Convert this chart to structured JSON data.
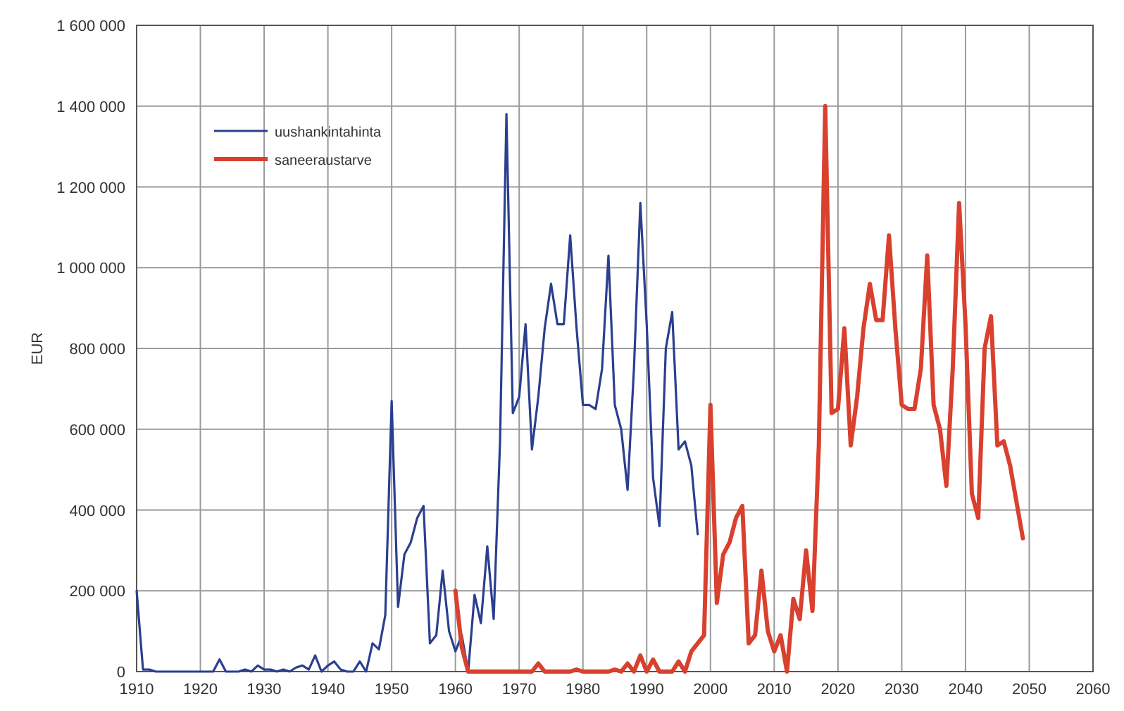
{
  "chart_data": {
    "type": "line",
    "ylabel": "EUR",
    "xlim": [
      1910,
      2060
    ],
    "xticks": [
      1910,
      1920,
      1930,
      1940,
      1950,
      1960,
      1970,
      1980,
      1990,
      2000,
      2010,
      2020,
      2030,
      2040,
      2050,
      2060
    ],
    "ylim": [
      0,
      1600000
    ],
    "yticks": [
      0,
      {
        "value": 200000,
        "label": "200 000"
      },
      {
        "value": 400000,
        "label": "400 000"
      },
      {
        "value": 600000,
        "label": "600 000"
      },
      {
        "value": 800000,
        "label": "800 000"
      },
      {
        "value": 1000000,
        "label": "1 000 000"
      },
      {
        "value": 1200000,
        "label": "1 200 000"
      },
      {
        "value": 1400000,
        "label": "1 400 000"
      },
      {
        "value": 1600000,
        "label": "1 600 000"
      }
    ],
    "grid": true,
    "legend": "top left",
    "marker": "none",
    "line_style": "solid",
    "series": [
      {
        "name": "uushankintahinta",
        "color": "#2b3f8f",
        "x": [
          1910,
          1911,
          1912,
          1913,
          1914,
          1915,
          1916,
          1917,
          1918,
          1919,
          1920,
          1921,
          1922,
          1923,
          1924,
          1925,
          1926,
          1927,
          1928,
          1929,
          1930,
          1931,
          1932,
          1933,
          1934,
          1935,
          1936,
          1937,
          1938,
          1939,
          1940,
          1941,
          1942,
          1943,
          1944,
          1945,
          1946,
          1947,
          1948,
          1949,
          1950,
          1951,
          1952,
          1953,
          1954,
          1955,
          1956,
          1957,
          1958,
          1959,
          1960,
          1961,
          1962,
          1963,
          1964,
          1965,
          1966,
          1967,
          1968,
          1969,
          1970,
          1971,
          1972,
          1973,
          1974,
          1975,
          1976,
          1977,
          1978,
          1979,
          1980,
          1981,
          1982,
          1983,
          1984,
          1985,
          1986,
          1987,
          1988,
          1989,
          1990,
          1991,
          1992,
          1993,
          1994,
          1995,
          1996,
          1997,
          1998
        ],
        "values": [
          200000,
          5000,
          5000,
          0,
          0,
          0,
          0,
          0,
          0,
          0,
          0,
          0,
          0,
          30000,
          0,
          0,
          0,
          5000,
          0,
          15000,
          5000,
          5000,
          0,
          5000,
          0,
          10000,
          15000,
          5000,
          40000,
          0,
          15000,
          25000,
          5000,
          0,
          0,
          25000,
          0,
          70000,
          55000,
          140000,
          670000,
          160000,
          290000,
          320000,
          380000,
          410000,
          70000,
          90000,
          250000,
          100000,
          50000,
          90000,
          0,
          190000,
          120000,
          310000,
          130000,
          570000,
          1380000,
          640000,
          680000,
          860000,
          550000,
          680000,
          850000,
          960000,
          860000,
          860000,
          1080000,
          850000,
          660000,
          660000,
          650000,
          750000,
          1030000,
          660000,
          600000,
          450000,
          750000,
          1160000,
          860000,
          480000,
          360000,
          800000,
          890000,
          550000,
          570000,
          510000,
          340000
        ]
      },
      {
        "name": "saneeraustarve",
        "color": "#d9402e",
        "x": [
          1960,
          1961,
          1962,
          1963,
          1964,
          1965,
          1966,
          1967,
          1968,
          1969,
          1970,
          1971,
          1972,
          1973,
          1974,
          1975,
          1976,
          1977,
          1978,
          1979,
          1980,
          1981,
          1982,
          1983,
          1984,
          1985,
          1986,
          1987,
          1988,
          1989,
          1990,
          1991,
          1992,
          1993,
          1994,
          1995,
          1996,
          1997,
          1998,
          1999,
          2000,
          2001,
          2002,
          2003,
          2004,
          2005,
          2006,
          2007,
          2008,
          2009,
          2010,
          2011,
          2012,
          2013,
          2014,
          2015,
          2016,
          2017,
          2018,
          2019,
          2020,
          2021,
          2022,
          2023,
          2024,
          2025,
          2026,
          2027,
          2028,
          2029,
          2030,
          2031,
          2032,
          2033,
          2034,
          2035,
          2036,
          2037,
          2038,
          2039,
          2040,
          2041,
          2042,
          2043,
          2044,
          2045,
          2046,
          2047,
          2048,
          2049
        ],
        "values": [
          200000,
          60000,
          0,
          0,
          0,
          0,
          0,
          0,
          0,
          0,
          0,
          0,
          0,
          20000,
          0,
          0,
          0,
          0,
          0,
          5000,
          0,
          0,
          0,
          0,
          0,
          5000,
          0,
          20000,
          0,
          40000,
          0,
          30000,
          0,
          0,
          0,
          25000,
          0,
          50000,
          70000,
          90000,
          660000,
          170000,
          290000,
          320000,
          380000,
          410000,
          70000,
          90000,
          250000,
          100000,
          50000,
          90000,
          0,
          180000,
          130000,
          300000,
          150000,
          560000,
          1400000,
          640000,
          650000,
          850000,
          560000,
          680000,
          850000,
          960000,
          870000,
          870000,
          1080000,
          850000,
          660000,
          650000,
          650000,
          750000,
          1030000,
          660000,
          600000,
          460000,
          750000,
          1160000,
          860000,
          440000,
          380000,
          800000,
          880000,
          560000,
          570000,
          510000,
          420000,
          330000
        ]
      }
    ]
  }
}
